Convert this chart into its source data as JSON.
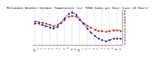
{
  "title": "Milwaukee Weather Outdoor Temperature (vs) THSW Index per Hour (Last 24 Hours)",
  "title_fontsize": 3.2,
  "hours": [
    0,
    1,
    2,
    3,
    4,
    5,
    6,
    7,
    8,
    9,
    10,
    11,
    12,
    13,
    14,
    15,
    16,
    17,
    18,
    19,
    20,
    21,
    22,
    23
  ],
  "temp": [
    52,
    51,
    50,
    48,
    46,
    44,
    46,
    50,
    55,
    60,
    62,
    60,
    55,
    50,
    45,
    41,
    38,
    36,
    35,
    34,
    36,
    37,
    37,
    36
  ],
  "thsw": [
    49,
    48,
    46,
    44,
    42,
    40,
    43,
    50,
    58,
    65,
    68,
    64,
    56,
    48,
    40,
    33,
    27,
    23,
    20,
    18,
    20,
    22,
    23,
    22
  ],
  "temp_color": "#cc0000",
  "thsw_color": "#0000cc",
  "background": "#ffffff",
  "grid_color": "#888888",
  "ylim_min": 10,
  "ylim_max": 72,
  "yticks": [
    15,
    20,
    25,
    30,
    35,
    40,
    45,
    50,
    55,
    60,
    65,
    70
  ],
  "xtick_labels": [
    "12a",
    "1",
    "2",
    "3",
    "4",
    "5",
    "6",
    "7",
    "8",
    "9",
    "10",
    "11",
    "12p",
    "1",
    "2",
    "3",
    "4",
    "5",
    "6",
    "7",
    "8",
    "9",
    "10",
    "11"
  ],
  "vgrid_positions": [
    0,
    2,
    4,
    6,
    8,
    10,
    12,
    14,
    16,
    18,
    20,
    22
  ]
}
